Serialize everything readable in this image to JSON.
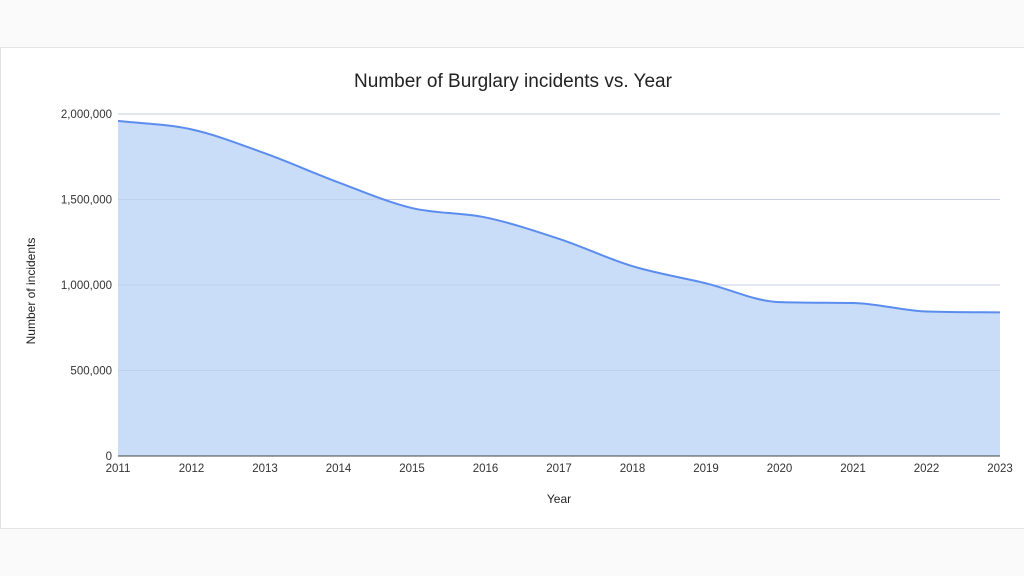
{
  "chart_data": {
    "type": "area",
    "title": "Number of Burglary incidents vs. Year",
    "xlabel": "Year",
    "ylabel": "Number of incidents",
    "x": [
      2011,
      2012,
      2013,
      2014,
      2015,
      2016,
      2017,
      2018,
      2019,
      2020,
      2021,
      2022,
      2023
    ],
    "x_tick_labels": [
      "2011",
      "2012",
      "2013",
      "2014",
      "2015",
      "2016",
      "2017",
      "2018",
      "2019",
      "2020",
      "2021",
      "2022",
      "2023"
    ],
    "y_tick_labels": [
      "0",
      "500,000",
      "1,000,000",
      "1,500,000",
      "2,000,000"
    ],
    "y_ticks": [
      0,
      500000,
      1000000,
      1500000,
      2000000
    ],
    "ylim": [
      0,
      2000000
    ],
    "series": [
      {
        "values": [
          1960000,
          1910000,
          1770000,
          1600000,
          1450000,
          1395000,
          1270000,
          1110000,
          1010000,
          900000,
          895000,
          845000,
          840000
        ]
      }
    ],
    "grid": true,
    "colors": {
      "line": "#5b8def",
      "fill": "#c6daf8",
      "grid": "#dadada"
    }
  }
}
